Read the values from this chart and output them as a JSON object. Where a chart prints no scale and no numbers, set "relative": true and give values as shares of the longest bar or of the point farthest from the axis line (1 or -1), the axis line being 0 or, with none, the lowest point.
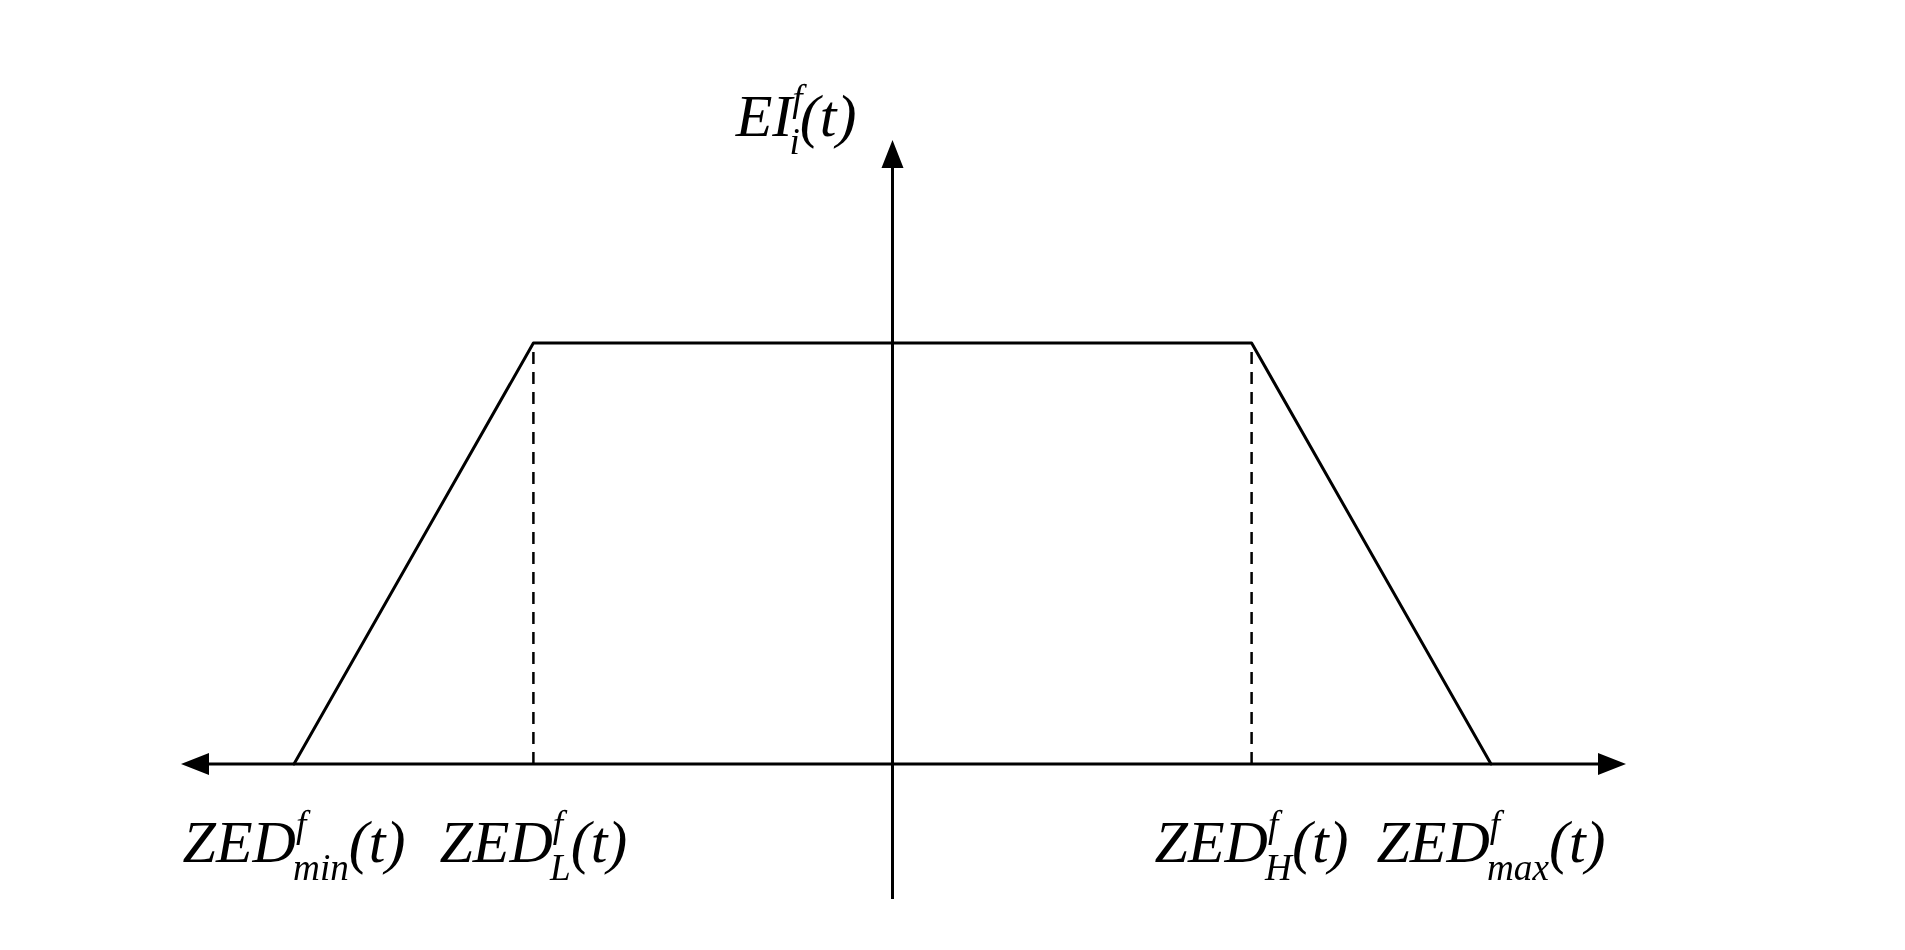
{
  "chart_data": {
    "type": "line",
    "relative": true,
    "ylabel": "EI$^{f}$$_{i}$(t)",
    "categories": [
      "ZED$^{f}$$_{min}$(t)",
      null,
      "ZED$^{f}$$_{L}$(t)",
      null,
      null,
      null,
      null,
      null,
      "ZED$^{f}$$_{H}$(t)",
      null,
      "ZED$^{f}$$_{max}$(t)"
    ],
    "series": [
      {
        "color": "#000000",
        "values": [
          0,
          0.5,
          1,
          1,
          1,
          1,
          1,
          1,
          1,
          0.5,
          0
        ]
      }
    ],
    "line_style": "solid",
    "ref_lines": [
      {
        "axis": "x",
        "value": "ZED$^{f}$$_{L}$(t)",
        "color": "#000000",
        "line_style": "dashed"
      },
      {
        "axis": "x",
        "value": "ZED$^{f}$$_{H}$(t)",
        "color": "#000000",
        "line_style": "dashed"
      }
    ]
  }
}
